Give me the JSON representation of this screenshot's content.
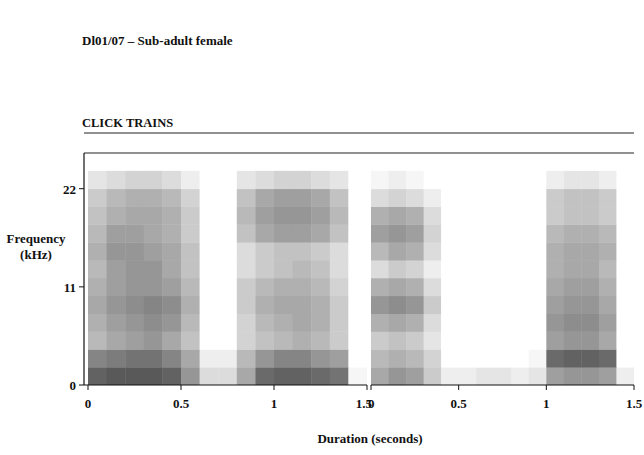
{
  "chart_data": {
    "type": "heatmap",
    "title": "Dl01/07 – Sub-adult female",
    "subtitle": "CLICK TRAINS",
    "y_label": "Frequency (kHz)",
    "x_label": "Duration (seconds)",
    "ylim": [
      0,
      26
    ],
    "yticks": [
      0,
      11,
      22
    ],
    "panels": [
      {
        "xlim": [
          0,
          1.5
        ],
        "xticks": [
          0,
          0.5,
          1,
          1.5
        ],
        "time_bins": [
          0,
          0.1,
          0.2,
          0.3,
          0.4,
          0.5,
          0.6,
          0.7,
          0.8,
          0.9,
          1,
          1.1,
          1.2,
          1.3,
          1.4,
          1.5
        ],
        "freq_bins": [
          0,
          2,
          4,
          6,
          8,
          10,
          12,
          14,
          16,
          18,
          20,
          22,
          24
        ],
        "cells": [
          [
            0.9,
            0.95,
            0.95,
            0.95,
            0.9,
            0.6,
            0.2,
            0.2,
            0.5,
            0.85,
            0.9,
            0.9,
            0.85,
            0.8,
            0.05
          ],
          [
            0.7,
            0.75,
            0.8,
            0.8,
            0.7,
            0.5,
            0.1,
            0.1,
            0.4,
            0.6,
            0.7,
            0.7,
            0.6,
            0.55,
            0
          ],
          [
            0.4,
            0.5,
            0.55,
            0.6,
            0.5,
            0.35,
            0,
            0,
            0.25,
            0.35,
            0.4,
            0.45,
            0.4,
            0.3,
            0
          ],
          [
            0.45,
            0.55,
            0.6,
            0.65,
            0.6,
            0.4,
            0,
            0,
            0.25,
            0.4,
            0.45,
            0.5,
            0.45,
            0.3,
            0
          ],
          [
            0.5,
            0.6,
            0.65,
            0.7,
            0.65,
            0.45,
            0,
            0,
            0.3,
            0.45,
            0.5,
            0.5,
            0.45,
            0.3,
            0
          ],
          [
            0.45,
            0.55,
            0.6,
            0.6,
            0.55,
            0.4,
            0,
            0,
            0.3,
            0.4,
            0.45,
            0.45,
            0.4,
            0.25,
            0
          ],
          [
            0.4,
            0.55,
            0.6,
            0.6,
            0.5,
            0.35,
            0,
            0,
            0.2,
            0.3,
            0.35,
            0.4,
            0.35,
            0.2,
            0
          ],
          [
            0.45,
            0.6,
            0.6,
            0.55,
            0.5,
            0.35,
            0,
            0,
            0.2,
            0.3,
            0.35,
            0.35,
            0.3,
            0.2,
            0
          ],
          [
            0.4,
            0.55,
            0.55,
            0.5,
            0.45,
            0.3,
            0,
            0,
            0.35,
            0.5,
            0.55,
            0.55,
            0.5,
            0.35,
            0
          ],
          [
            0.35,
            0.45,
            0.5,
            0.5,
            0.45,
            0.3,
            0,
            0,
            0.4,
            0.55,
            0.6,
            0.6,
            0.55,
            0.4,
            0
          ],
          [
            0.3,
            0.4,
            0.45,
            0.45,
            0.4,
            0.25,
            0,
            0,
            0.35,
            0.5,
            0.55,
            0.55,
            0.5,
            0.35,
            0
          ],
          [
            0.15,
            0.2,
            0.25,
            0.25,
            0.2,
            0.1,
            0,
            0,
            0.15,
            0.2,
            0.25,
            0.25,
            0.2,
            0.15,
            0
          ]
        ]
      },
      {
        "xlim": [
          0,
          1.5
        ],
        "xticks": [
          0,
          0.5,
          1,
          1.5
        ],
        "time_bins": [
          0,
          0.1,
          0.2,
          0.3,
          0.4,
          0.5,
          0.6,
          0.7,
          0.8,
          0.9,
          1,
          1.1,
          1.2,
          1.3,
          1.4,
          1.5
        ],
        "freq_bins": [
          0,
          2,
          4,
          6,
          8,
          10,
          12,
          14,
          16,
          18,
          20,
          22,
          24
        ],
        "cells": [
          [
            0.5,
            0.6,
            0.55,
            0.3,
            0.1,
            0.1,
            0.15,
            0.15,
            0.1,
            0.15,
            0.55,
            0.6,
            0.6,
            0.55,
            0.1
          ],
          [
            0.4,
            0.45,
            0.4,
            0.25,
            0,
            0,
            0,
            0,
            0,
            0.05,
            0.85,
            0.9,
            0.9,
            0.85,
            0
          ],
          [
            0.3,
            0.35,
            0.3,
            0.15,
            0,
            0,
            0,
            0,
            0,
            0,
            0.55,
            0.6,
            0.6,
            0.5,
            0
          ],
          [
            0.45,
            0.5,
            0.45,
            0.2,
            0,
            0,
            0,
            0,
            0,
            0,
            0.6,
            0.65,
            0.65,
            0.55,
            0
          ],
          [
            0.6,
            0.65,
            0.6,
            0.3,
            0,
            0,
            0,
            0,
            0,
            0,
            0.55,
            0.6,
            0.6,
            0.5,
            0
          ],
          [
            0.45,
            0.5,
            0.45,
            0.2,
            0,
            0,
            0,
            0,
            0,
            0,
            0.5,
            0.55,
            0.55,
            0.45,
            0
          ],
          [
            0.2,
            0.3,
            0.25,
            0.1,
            0,
            0,
            0,
            0,
            0,
            0,
            0.45,
            0.5,
            0.5,
            0.4,
            0
          ],
          [
            0.4,
            0.5,
            0.45,
            0.2,
            0,
            0,
            0,
            0,
            0,
            0,
            0.45,
            0.5,
            0.5,
            0.45,
            0
          ],
          [
            0.55,
            0.6,
            0.55,
            0.25,
            0,
            0,
            0,
            0,
            0,
            0,
            0.4,
            0.45,
            0.45,
            0.4,
            0
          ],
          [
            0.45,
            0.5,
            0.45,
            0.2,
            0,
            0,
            0,
            0,
            0,
            0,
            0.3,
            0.35,
            0.35,
            0.3,
            0
          ],
          [
            0.2,
            0.25,
            0.2,
            0.1,
            0,
            0,
            0,
            0,
            0,
            0,
            0.3,
            0.35,
            0.35,
            0.3,
            0
          ],
          [
            0.05,
            0.1,
            0.05,
            0,
            0,
            0,
            0,
            0,
            0,
            0,
            0.1,
            0.15,
            0.15,
            0.1,
            0
          ]
        ]
      }
    ]
  }
}
